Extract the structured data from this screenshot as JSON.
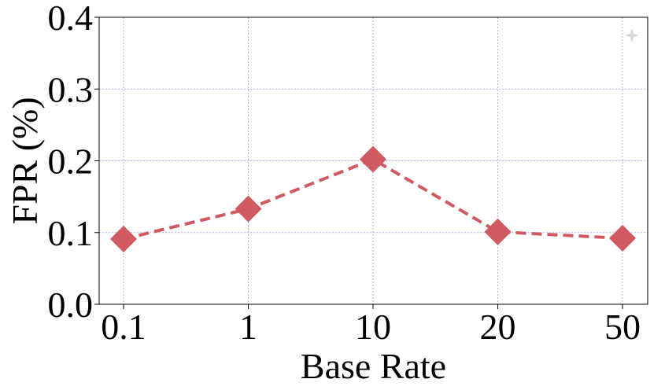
{
  "chart_data": {
    "type": "line",
    "title": "",
    "xlabel": "Base Rate",
    "ylabel": "FPR (%)",
    "categories": [
      "0.1",
      "1",
      "10",
      "20",
      "50"
    ],
    "ylim": [
      0.0,
      0.4
    ],
    "y_ticks": [
      "0.0",
      "0.1",
      "0.2",
      "0.3",
      "0.4"
    ],
    "grid": true,
    "series": [
      {
        "values": [
          0.091,
          0.133,
          0.202,
          0.101,
          0.092
        ],
        "color": "#d05a62",
        "line_style": "dashed",
        "marker": "diamond"
      }
    ]
  },
  "colors": {
    "grid": "#9a9ae8",
    "axis": "#000000",
    "series": "#d05a62",
    "corner_mark": "#d8d8d8"
  },
  "corner_mark_icon": "four-point-star-icon"
}
